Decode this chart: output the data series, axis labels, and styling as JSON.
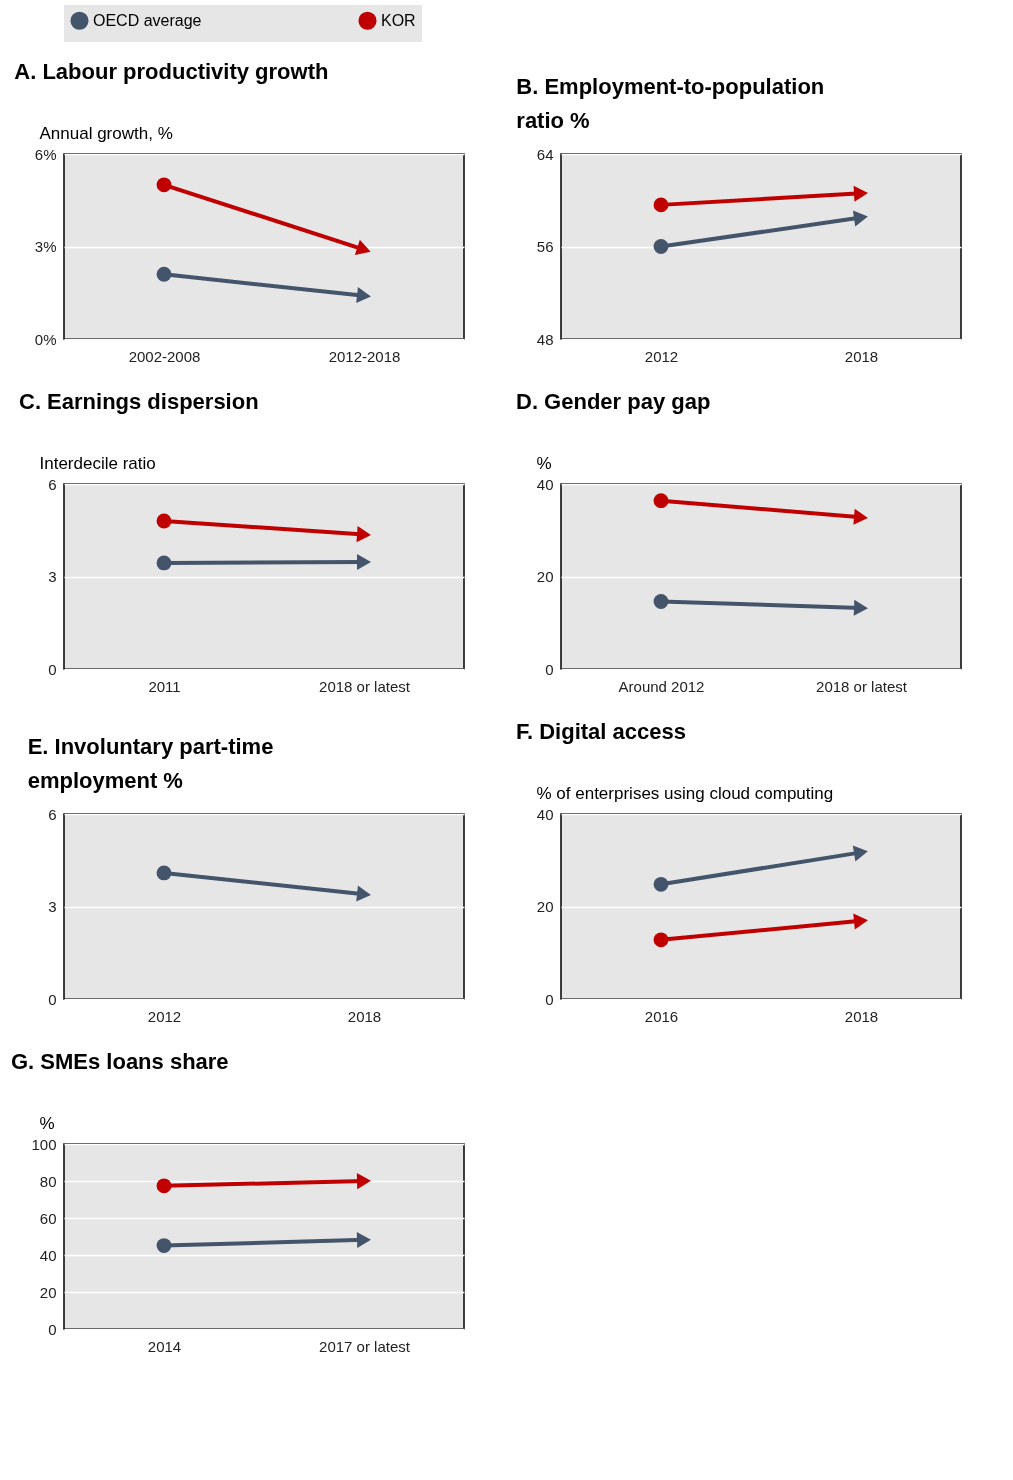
{
  "chart_data": [
    {
      "type": "line",
      "title": "A. Labour productivity growth",
      "ylabel": "Annual growth, %",
      "categories": [
        "2002-2008",
        "2012-2018"
      ],
      "ylim": [
        0,
        6
      ],
      "yticks": [
        {
          "value": 0,
          "label": "0%"
        },
        {
          "value": 3,
          "label": "3%"
        },
        {
          "value": 6,
          "label": "6%"
        }
      ],
      "grid": "y",
      "legend": "top",
      "marker": "circle",
      "series": [
        {
          "name": "OECD average",
          "color": "#44546a",
          "values": [
            2.1,
            1.4
          ]
        },
        {
          "name": "KOR",
          "color": "#c00000",
          "values": [
            5.0,
            2.9
          ]
        }
      ]
    },
    {
      "type": "line",
      "title": "B. Employment-to-population ratio %",
      "categories": [
        "2012",
        "2018"
      ],
      "ylim": [
        48,
        64
      ],
      "yticks": [
        48,
        56,
        64
      ],
      "grid": "y",
      "marker": "circle",
      "series": [
        {
          "name": "OECD average",
          "color": "#44546a",
          "values": [
            56.0,
            58.5
          ]
        },
        {
          "name": "KOR",
          "color": "#c00000",
          "values": [
            59.6,
            60.6
          ]
        }
      ]
    },
    {
      "type": "line",
      "title": "C. Earnings dispersion",
      "ylabel": "Interdecile ratio",
      "categories": [
        "2011",
        "2018 or latest"
      ],
      "ylim": [
        0,
        6
      ],
      "yticks": [
        0,
        3,
        6
      ],
      "grid": "y",
      "marker": "circle",
      "series": [
        {
          "name": "OECD average",
          "color": "#44546a",
          "values": [
            3.44,
            3.47
          ]
        },
        {
          "name": "KOR",
          "color": "#c00000",
          "values": [
            4.8,
            4.36
          ]
        }
      ]
    },
    {
      "type": "line",
      "title": "D. Gender pay gap",
      "ylabel": "%",
      "categories": [
        "Around 2012",
        "2018 or latest"
      ],
      "ylim": [
        0,
        40
      ],
      "yticks": [
        0,
        20,
        40
      ],
      "grid": "y",
      "marker": "circle",
      "series": [
        {
          "name": "OECD average",
          "color": "#44546a",
          "values": [
            14.6,
            13.2
          ]
        },
        {
          "name": "KOR",
          "color": "#c00000",
          "values": [
            36.4,
            32.8
          ]
        }
      ]
    },
    {
      "type": "line",
      "title": "E. Involuntary part-time employment %",
      "categories": [
        "2012",
        "2018"
      ],
      "ylim": [
        0,
        6
      ],
      "yticks": [
        0,
        3,
        6
      ],
      "grid": "y",
      "marker": "circle",
      "series": [
        {
          "name": "OECD average",
          "color": "#44546a",
          "values": [
            4.09,
            3.4
          ]
        },
        {
          "name": "KOR",
          "color": "#c00000",
          "values": [
            null,
            null
          ]
        }
      ]
    },
    {
      "type": "line",
      "title": "F. Digital access",
      "ylabel": "% of enterprises using cloud computing",
      "categories": [
        "2016",
        "2018"
      ],
      "ylim": [
        0,
        40
      ],
      "yticks": [
        0,
        20,
        40
      ],
      "grid": "y",
      "marker": "circle",
      "series": [
        {
          "name": "OECD average",
          "color": "#44546a",
          "values": [
            24.8,
            31.7
          ]
        },
        {
          "name": "KOR",
          "color": "#c00000",
          "values": [
            12.8,
            16.9
          ]
        }
      ]
    },
    {
      "type": "line",
      "title": "G. SMEs loans share",
      "ylabel": "%",
      "categories": [
        "2014",
        "2017 or latest"
      ],
      "ylim": [
        0,
        100
      ],
      "yticks": [
        0,
        20,
        40,
        60,
        80,
        100
      ],
      "grid": "y",
      "marker": "circle",
      "series": [
        {
          "name": "OECD average",
          "color": "#44546a",
          "values": [
            45.1,
            48.2
          ]
        },
        {
          "name": "KOR",
          "color": "#c00000",
          "values": [
            77.4,
            80.0
          ]
        }
      ]
    }
  ]
}
